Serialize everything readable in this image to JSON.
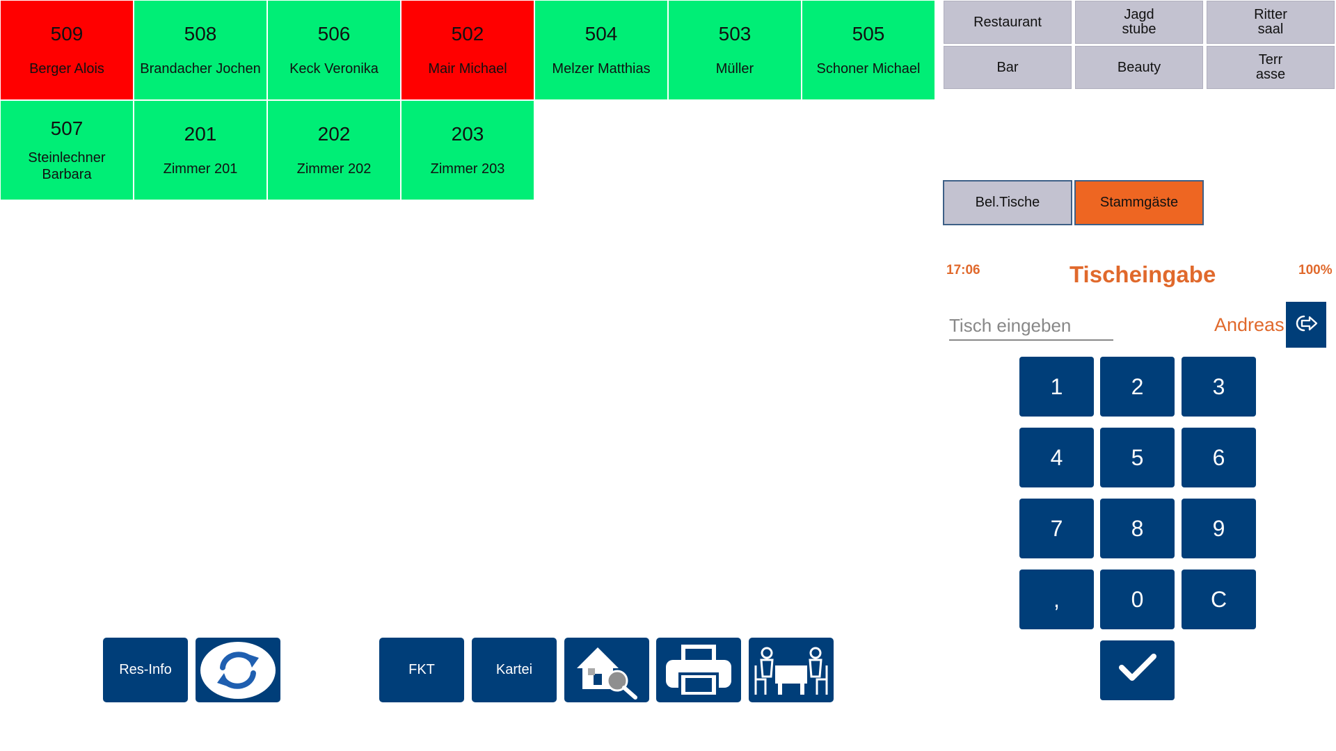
{
  "tables": [
    {
      "number": "509",
      "name": "Berger Alois",
      "status": "busy"
    },
    {
      "number": "508",
      "name": "Brandacher Jochen",
      "status": "free"
    },
    {
      "number": "506",
      "name": "Keck Veronika",
      "status": "free"
    },
    {
      "number": "502",
      "name": "Mair Michael",
      "status": "busy"
    },
    {
      "number": "504",
      "name": "Melzer Matthias",
      "status": "free"
    },
    {
      "number": "503",
      "name": "Müller",
      "status": "free"
    },
    {
      "number": "505",
      "name": "Schoner Michael",
      "status": "free"
    },
    {
      "number": "507",
      "name": "Steinlechner Barbara",
      "status": "free"
    },
    {
      "number": "201",
      "name": "Zimmer 201",
      "status": "free"
    },
    {
      "number": "202",
      "name": "Zimmer 202",
      "status": "free"
    },
    {
      "number": "203",
      "name": "Zimmer 203",
      "status": "free"
    }
  ],
  "areas": {
    "restaurant": "Restaurant",
    "jagdstube": "Jagd\nstube",
    "rittersaal": "Ritter\nsaal",
    "bar": "Bar",
    "beauty": "Beauty",
    "terrasse": "Terr\nasse"
  },
  "filters": {
    "occupied_tables": "Bel.Tische",
    "regular_guests": "Stammgäste"
  },
  "entry": {
    "time": "17:06",
    "title": "Tischeingabe",
    "zoom": "100%",
    "placeholder": "Tisch eingeben",
    "user": "Andreas"
  },
  "keypad": {
    "k1": "1",
    "k2": "2",
    "k3": "3",
    "k4": "4",
    "k5": "5",
    "k6": "6",
    "k7": "7",
    "k8": "8",
    "k9": "9",
    "comma": ",",
    "k0": "0",
    "clear": "C"
  },
  "toolbar": {
    "res_info": "Res-Info",
    "fkt": "FKT",
    "kartei": "Kartei"
  },
  "colors": {
    "free": "#00ee76",
    "busy": "#ff0000",
    "accent": "#e0692c",
    "button": "#003e79"
  },
  "icons": {
    "refresh": "refresh-icon",
    "house_search": "house-search-icon",
    "printer": "printer-icon",
    "table_guests": "table-guests-icon",
    "logout": "logout-icon",
    "confirm": "checkmark-icon"
  }
}
